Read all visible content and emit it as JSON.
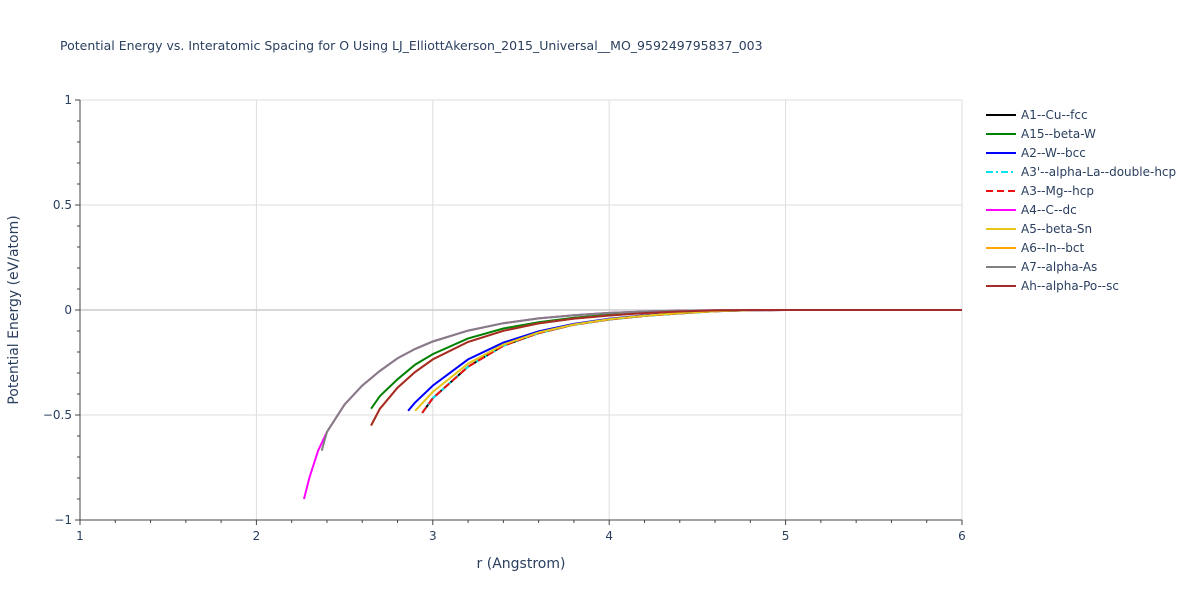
{
  "chart_data": {
    "type": "line",
    "title": "Potential Energy vs. Interatomic Spacing for O Using LJ_ElliottAkerson_2015_Universal__MO_959249795837_003",
    "xlabel": "r (Angstrom)",
    "ylabel": "Potential Energy (eV/atom)",
    "xlim": [
      1,
      6
    ],
    "ylim": [
      -1,
      1
    ],
    "xticks": [
      1,
      2,
      3,
      4,
      5,
      6
    ],
    "xtick_labels": [
      "1",
      "2",
      "3",
      "4",
      "5",
      "6"
    ],
    "yticks": [
      -1,
      -0.5,
      0,
      0.5,
      1
    ],
    "ytick_labels": [
      "−1",
      "−0.5",
      "0",
      "0.5",
      "1"
    ],
    "grid": true,
    "legend_position": "right",
    "series": [
      {
        "name": "A1--Cu--fcc",
        "color": "#000000",
        "dash": "solid",
        "x": [
          2.94,
          3.0,
          3.2,
          3.4,
          3.6,
          3.8,
          4.0,
          4.2,
          4.4,
          4.6,
          4.8,
          5.0,
          5.5,
          6.0
        ],
        "y": [
          -0.49,
          -0.42,
          -0.27,
          -0.17,
          -0.11,
          -0.07,
          -0.045,
          -0.028,
          -0.016,
          -0.006,
          -0.001,
          0.0,
          0.0,
          0.0
        ]
      },
      {
        "name": "A15--beta-W",
        "color": "#008000",
        "dash": "solid",
        "x": [
          2.65,
          2.7,
          2.8,
          2.9,
          3.0,
          3.2,
          3.4,
          3.6,
          3.8,
          4.0,
          4.2,
          4.4,
          4.6,
          4.8,
          5.0,
          5.5,
          6.0
        ],
        "y": [
          -0.47,
          -0.41,
          -0.33,
          -0.26,
          -0.21,
          -0.135,
          -0.088,
          -0.058,
          -0.037,
          -0.023,
          -0.013,
          -0.006,
          -0.002,
          0.0,
          0.0,
          0.0,
          0.0
        ]
      },
      {
        "name": "A2--W--bcc",
        "color": "#0000ff",
        "dash": "solid",
        "x": [
          2.86,
          2.9,
          3.0,
          3.2,
          3.4,
          3.6,
          3.8,
          4.0,
          4.2,
          4.4,
          4.6,
          4.8,
          5.0,
          5.5,
          6.0
        ],
        "y": [
          -0.48,
          -0.44,
          -0.36,
          -0.235,
          -0.155,
          -0.102,
          -0.066,
          -0.042,
          -0.025,
          -0.013,
          -0.005,
          -0.001,
          0.0,
          0.0,
          0.0
        ]
      },
      {
        "name": "A3'--alpha-La--double-hcp",
        "color": "#00e5ee",
        "dash": "dashdot",
        "x": [
          2.94,
          3.0,
          3.2,
          3.4,
          3.6,
          3.8,
          4.0,
          4.2,
          4.4,
          4.6,
          4.8,
          5.0,
          5.5,
          6.0
        ],
        "y": [
          -0.49,
          -0.42,
          -0.27,
          -0.17,
          -0.11,
          -0.07,
          -0.045,
          -0.028,
          -0.016,
          -0.006,
          -0.001,
          0.0,
          0.0,
          0.0
        ]
      },
      {
        "name": "A3--Mg--hcp",
        "color": "#ee1111",
        "dash": "dash",
        "x": [
          2.94,
          3.0,
          3.2,
          3.4,
          3.6,
          3.8,
          4.0,
          4.2,
          4.4,
          4.6,
          4.8,
          5.0,
          5.5,
          6.0
        ],
        "y": [
          -0.49,
          -0.42,
          -0.27,
          -0.17,
          -0.11,
          -0.07,
          -0.045,
          -0.028,
          -0.016,
          -0.006,
          -0.001,
          0.0,
          0.0,
          0.0
        ]
      },
      {
        "name": "A4--C--dc",
        "color": "#ff00ff",
        "dash": "solid",
        "x": [
          2.27,
          2.3,
          2.35,
          2.4,
          2.5,
          2.6,
          2.7,
          2.8,
          2.9,
          3.0,
          3.2,
          3.4,
          3.6,
          3.8,
          4.0,
          4.2,
          4.4,
          4.6,
          5.0,
          5.5,
          6.0
        ],
        "y": [
          -0.9,
          -0.8,
          -0.67,
          -0.58,
          -0.45,
          -0.36,
          -0.29,
          -0.23,
          -0.185,
          -0.15,
          -0.098,
          -0.063,
          -0.04,
          -0.025,
          -0.014,
          -0.007,
          -0.003,
          -0.001,
          0.0,
          0.0,
          0.0
        ]
      },
      {
        "name": "A5--beta-Sn",
        "color": "#e6c619",
        "dash": "solid",
        "x": [
          2.9,
          3.0,
          3.2,
          3.4,
          3.6,
          3.8,
          4.0,
          4.2,
          4.4,
          4.6,
          4.8,
          5.0,
          5.5,
          6.0
        ],
        "y": [
          -0.48,
          -0.39,
          -0.255,
          -0.165,
          -0.107,
          -0.069,
          -0.044,
          -0.027,
          -0.015,
          -0.006,
          -0.001,
          0.0,
          0.0,
          0.0
        ]
      },
      {
        "name": "A6--In--bct",
        "color": "#ffa500",
        "dash": "solid",
        "x": [
          2.65,
          2.7,
          2.8,
          2.9,
          3.0,
          3.2,
          3.4,
          3.6,
          3.8,
          4.0,
          4.2,
          4.4,
          4.6,
          4.8,
          5.0,
          5.5,
          6.0
        ],
        "y": [
          -0.55,
          -0.47,
          -0.37,
          -0.295,
          -0.235,
          -0.152,
          -0.099,
          -0.064,
          -0.041,
          -0.026,
          -0.015,
          -0.007,
          -0.002,
          0.0,
          0.0,
          0.0,
          0.0
        ]
      },
      {
        "name": "A7--alpha-As",
        "color": "#808080",
        "dash": "solid",
        "x": [
          2.37,
          2.4,
          2.5,
          2.6,
          2.7,
          2.8,
          2.9,
          3.0,
          3.2,
          3.4,
          3.6,
          3.8,
          4.0,
          4.2,
          4.4,
          4.6,
          5.0,
          5.5,
          6.0
        ],
        "y": [
          -0.67,
          -0.58,
          -0.45,
          -0.36,
          -0.29,
          -0.23,
          -0.185,
          -0.15,
          -0.098,
          -0.063,
          -0.04,
          -0.025,
          -0.014,
          -0.007,
          -0.003,
          -0.001,
          0.0,
          0.0,
          0.0
        ]
      },
      {
        "name": "Ah--alpha-Po--sc",
        "color": "#a52a2a",
        "dash": "solid",
        "x": [
          2.65,
          2.7,
          2.8,
          2.9,
          3.0,
          3.2,
          3.4,
          3.6,
          3.8,
          4.0,
          4.2,
          4.4,
          4.6,
          4.8,
          5.0,
          5.5,
          6.0
        ],
        "y": [
          -0.55,
          -0.47,
          -0.37,
          -0.295,
          -0.235,
          -0.152,
          -0.099,
          -0.064,
          -0.041,
          -0.026,
          -0.015,
          -0.007,
          -0.002,
          0.0,
          0.0,
          0.0,
          0.0
        ]
      }
    ]
  }
}
